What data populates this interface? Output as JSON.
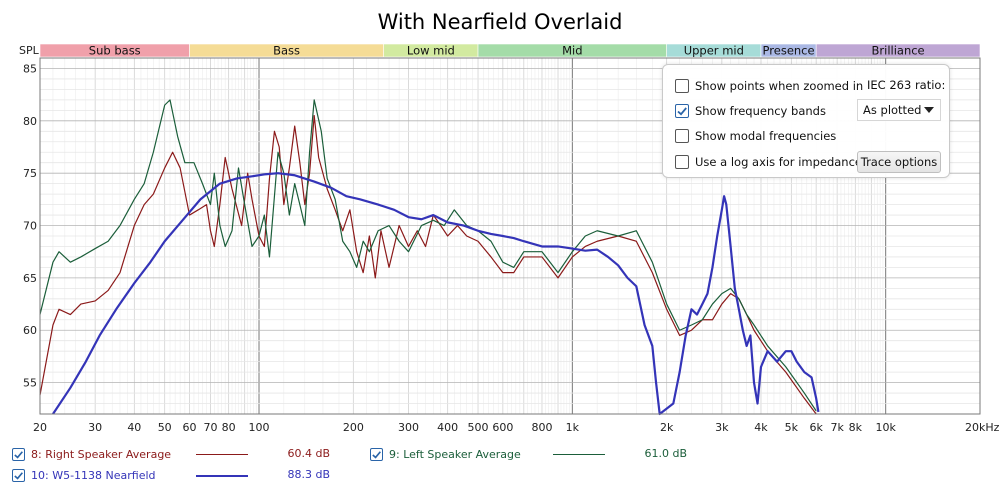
{
  "chart_data": {
    "type": "line",
    "title": "With Nearfield Overlaid",
    "ylabel": "SPL",
    "xunit_label": "20kHz",
    "xscale": "log",
    "xlim": [
      20,
      20000
    ],
    "ylim": [
      52,
      86
    ],
    "grid": true,
    "x_ticks": [
      {
        "v": 20,
        "label": "20"
      },
      {
        "v": 30,
        "label": "30"
      },
      {
        "v": 40,
        "label": "40"
      },
      {
        "v": 50,
        "label": "50"
      },
      {
        "v": 60,
        "label": "60"
      },
      {
        "v": 70,
        "label": "70"
      },
      {
        "v": 80,
        "label": "80"
      },
      {
        "v": 100,
        "label": "100"
      },
      {
        "v": 200,
        "label": "200"
      },
      {
        "v": 300,
        "label": "300"
      },
      {
        "v": 400,
        "label": "400"
      },
      {
        "v": 500,
        "label": "500"
      },
      {
        "v": 600,
        "label": "600"
      },
      {
        "v": 800,
        "label": "800"
      },
      {
        "v": 1000,
        "label": "1k"
      },
      {
        "v": 2000,
        "label": "2k"
      },
      {
        "v": 3000,
        "label": "3k"
      },
      {
        "v": 4000,
        "label": "4k"
      },
      {
        "v": 5000,
        "label": "5k"
      },
      {
        "v": 6000,
        "label": "6k"
      },
      {
        "v": 7000,
        "label": "7k"
      },
      {
        "v": 8000,
        "label": "8k"
      },
      {
        "v": 10000,
        "label": "10k"
      }
    ],
    "y_ticks": [
      55,
      60,
      65,
      70,
      75,
      80,
      85
    ],
    "bands": [
      {
        "name": "Sub bass",
        "from": 20,
        "to": 60,
        "color": "#f0a0aa"
      },
      {
        "name": "Bass",
        "from": 60,
        "to": 250,
        "color": "#f5dc96"
      },
      {
        "name": "Low mid",
        "from": 250,
        "to": 500,
        "color": "#d2eaa0"
      },
      {
        "name": "Mid",
        "from": 500,
        "to": 2000,
        "color": "#a4dca8"
      },
      {
        "name": "Upper mid",
        "from": 2000,
        "to": 4000,
        "color": "#a6dcd8"
      },
      {
        "name": "Presence",
        "from": 4000,
        "to": 6000,
        "color": "#aab8e4"
      },
      {
        "name": "Brilliance",
        "from": 6000,
        "to": 20000,
        "color": "#bea6d4"
      }
    ],
    "series": [
      {
        "id": "s8",
        "name": "8: Right Speaker Average",
        "value": "60.4 dB",
        "color": "#8b1a1a",
        "points": [
          [
            20,
            53.8
          ],
          [
            22,
            60.5
          ],
          [
            23,
            62.0
          ],
          [
            25,
            61.5
          ],
          [
            27,
            62.5
          ],
          [
            30,
            62.8
          ],
          [
            33,
            63.8
          ],
          [
            36,
            65.5
          ],
          [
            40,
            70.0
          ],
          [
            43,
            72.0
          ],
          [
            46,
            73.0
          ],
          [
            50,
            75.5
          ],
          [
            53,
            77.0
          ],
          [
            56,
            75.5
          ],
          [
            60,
            71.0
          ],
          [
            64,
            71.5
          ],
          [
            68,
            72.0
          ],
          [
            70,
            69.5
          ],
          [
            72,
            68.0
          ],
          [
            75,
            72.0
          ],
          [
            78,
            76.5
          ],
          [
            82,
            73.5
          ],
          [
            88,
            70.0
          ],
          [
            92,
            75.0
          ],
          [
            95,
            72.5
          ],
          [
            100,
            69.0
          ],
          [
            104,
            68.0
          ],
          [
            108,
            74.5
          ],
          [
            112,
            79.0
          ],
          [
            116,
            77.5
          ],
          [
            120,
            72.0
          ],
          [
            125,
            75.5
          ],
          [
            130,
            79.5
          ],
          [
            135,
            76.0
          ],
          [
            140,
            72.0
          ],
          [
            145,
            75.0
          ],
          [
            150,
            80.5
          ],
          [
            155,
            76.5
          ],
          [
            165,
            73.5
          ],
          [
            175,
            71.5
          ],
          [
            185,
            69.5
          ],
          [
            195,
            71.5
          ],
          [
            205,
            67.5
          ],
          [
            215,
            65.5
          ],
          [
            225,
            69.0
          ],
          [
            235,
            65.0
          ],
          [
            245,
            69.5
          ],
          [
            260,
            66.0
          ],
          [
            280,
            70.0
          ],
          [
            300,
            68.0
          ],
          [
            320,
            69.5
          ],
          [
            340,
            68.0
          ],
          [
            360,
            71.0
          ],
          [
            380,
            70.0
          ],
          [
            400,
            69.0
          ],
          [
            430,
            70.0
          ],
          [
            460,
            69.0
          ],
          [
            500,
            68.5
          ],
          [
            550,
            67.0
          ],
          [
            600,
            65.5
          ],
          [
            650,
            65.5
          ],
          [
            700,
            67.0
          ],
          [
            800,
            67.0
          ],
          [
            900,
            65.0
          ],
          [
            1000,
            67.0
          ],
          [
            1100,
            68.0
          ],
          [
            1200,
            68.5
          ],
          [
            1400,
            69.0
          ],
          [
            1600,
            68.5
          ],
          [
            1800,
            65.5
          ],
          [
            2000,
            62.0
          ],
          [
            2200,
            59.5
          ],
          [
            2400,
            60.0
          ],
          [
            2600,
            61.0
          ],
          [
            2800,
            61.0
          ],
          [
            3000,
            62.5
          ],
          [
            3200,
            63.5
          ],
          [
            3400,
            63.0
          ],
          [
            3600,
            61.5
          ],
          [
            3800,
            60.0
          ],
          [
            4200,
            58.0
          ],
          [
            4800,
            56.0
          ],
          [
            5500,
            53.5
          ],
          [
            6000,
            52.0
          ]
        ]
      },
      {
        "id": "s9",
        "name": "9: Left Speaker Average",
        "value": "61.0 dB",
        "color": "#1b5e3a",
        "points": [
          [
            20,
            61.5
          ],
          [
            22,
            66.5
          ],
          [
            23,
            67.5
          ],
          [
            25,
            66.5
          ],
          [
            27,
            67.0
          ],
          [
            30,
            67.8
          ],
          [
            33,
            68.5
          ],
          [
            36,
            70.0
          ],
          [
            40,
            72.5
          ],
          [
            43,
            74.0
          ],
          [
            46,
            77.0
          ],
          [
            50,
            81.5
          ],
          [
            52,
            82.0
          ],
          [
            55,
            78.5
          ],
          [
            58,
            76.0
          ],
          [
            62,
            76.0
          ],
          [
            66,
            74.0
          ],
          [
            70,
            72.0
          ],
          [
            72,
            75.0
          ],
          [
            75,
            70.0
          ],
          [
            78,
            68.0
          ],
          [
            82,
            69.5
          ],
          [
            86,
            75.5
          ],
          [
            90,
            72.0
          ],
          [
            95,
            68.0
          ],
          [
            100,
            69.0
          ],
          [
            104,
            71.0
          ],
          [
            108,
            67.0
          ],
          [
            115,
            77.0
          ],
          [
            120,
            75.0
          ],
          [
            125,
            71.0
          ],
          [
            130,
            74.0
          ],
          [
            135,
            72.0
          ],
          [
            140,
            70.0
          ],
          [
            145,
            77.0
          ],
          [
            150,
            82.0
          ],
          [
            158,
            79.0
          ],
          [
            165,
            74.5
          ],
          [
            175,
            72.5
          ],
          [
            185,
            68.5
          ],
          [
            195,
            67.5
          ],
          [
            205,
            66.0
          ],
          [
            215,
            68.5
          ],
          [
            225,
            67.5
          ],
          [
            240,
            69.5
          ],
          [
            260,
            70.0
          ],
          [
            280,
            68.5
          ],
          [
            300,
            67.5
          ],
          [
            330,
            70.0
          ],
          [
            360,
            70.5
          ],
          [
            390,
            70.0
          ],
          [
            420,
            71.5
          ],
          [
            460,
            70.0
          ],
          [
            500,
            69.5
          ],
          [
            550,
            68.5
          ],
          [
            600,
            66.5
          ],
          [
            650,
            66.0
          ],
          [
            700,
            67.5
          ],
          [
            800,
            67.5
          ],
          [
            900,
            65.5
          ],
          [
            1000,
            67.5
          ],
          [
            1100,
            69.0
          ],
          [
            1200,
            69.5
          ],
          [
            1400,
            69.0
          ],
          [
            1600,
            69.5
          ],
          [
            1800,
            66.5
          ],
          [
            2000,
            62.5
          ],
          [
            2200,
            60.0
          ],
          [
            2400,
            60.5
          ],
          [
            2600,
            61.0
          ],
          [
            2800,
            62.5
          ],
          [
            3000,
            63.5
          ],
          [
            3200,
            64.0
          ],
          [
            3400,
            63.0
          ],
          [
            3600,
            61.5
          ],
          [
            3800,
            60.5
          ],
          [
            4200,
            58.5
          ],
          [
            4800,
            56.5
          ],
          [
            5500,
            54.0
          ],
          [
            6000,
            52.3
          ]
        ]
      },
      {
        "id": "s10",
        "name": "10: W5-1138 Nearfield",
        "value": "88.3 dB",
        "color": "#3434b8",
        "points": [
          [
            22,
            52.0
          ],
          [
            25,
            54.5
          ],
          [
            28,
            57.0
          ],
          [
            31,
            59.5
          ],
          [
            35,
            62.0
          ],
          [
            40,
            64.5
          ],
          [
            45,
            66.5
          ],
          [
            50,
            68.5
          ],
          [
            57,
            70.5
          ],
          [
            65,
            72.5
          ],
          [
            75,
            74.0
          ],
          [
            85,
            74.5
          ],
          [
            95,
            74.7
          ],
          [
            105,
            74.9
          ],
          [
            115,
            75.0
          ],
          [
            130,
            74.8
          ],
          [
            150,
            74.2
          ],
          [
            170,
            73.6
          ],
          [
            190,
            72.8
          ],
          [
            210,
            72.5
          ],
          [
            240,
            72.0
          ],
          [
            270,
            71.5
          ],
          [
            300,
            70.8
          ],
          [
            330,
            70.6
          ],
          [
            360,
            71.0
          ],
          [
            400,
            70.3
          ],
          [
            450,
            70.0
          ],
          [
            500,
            69.5
          ],
          [
            550,
            69.2
          ],
          [
            600,
            69.0
          ],
          [
            650,
            68.8
          ],
          [
            700,
            68.5
          ],
          [
            800,
            68.0
          ],
          [
            900,
            68.0
          ],
          [
            1000,
            67.8
          ],
          [
            1100,
            67.6
          ],
          [
            1200,
            67.7
          ],
          [
            1300,
            67.0
          ],
          [
            1400,
            66.2
          ],
          [
            1500,
            65.0
          ],
          [
            1600,
            64.2
          ],
          [
            1700,
            60.5
          ],
          [
            1800,
            58.5
          ],
          [
            1850,
            55.0
          ],
          [
            1900,
            52.0
          ],
          [
            2100,
            53.0
          ],
          [
            2200,
            56.0
          ],
          [
            2300,
            59.5
          ],
          [
            2400,
            62.0
          ],
          [
            2500,
            61.5
          ],
          [
            2600,
            62.5
          ],
          [
            2700,
            63.5
          ],
          [
            2800,
            66.0
          ],
          [
            2900,
            69.0
          ],
          [
            3000,
            71.5
          ],
          [
            3050,
            72.8
          ],
          [
            3100,
            72.0
          ],
          [
            3200,
            68.0
          ],
          [
            3300,
            64.0
          ],
          [
            3400,
            62.0
          ],
          [
            3500,
            60.0
          ],
          [
            3600,
            58.5
          ],
          [
            3700,
            59.5
          ],
          [
            3800,
            55.0
          ],
          [
            3900,
            53.0
          ],
          [
            4000,
            56.5
          ],
          [
            4200,
            58.0
          ],
          [
            4500,
            57.0
          ],
          [
            4800,
            58.0
          ],
          [
            5000,
            58.0
          ],
          [
            5200,
            57.0
          ],
          [
            5500,
            56.0
          ],
          [
            5800,
            55.5
          ],
          [
            6000,
            53.5
          ],
          [
            6100,
            52.2
          ]
        ]
      }
    ]
  },
  "options": {
    "show_points": {
      "label": "Show points when zoomed in",
      "checked": false
    },
    "show_bands": {
      "label": "Show frequency bands",
      "checked": true
    },
    "show_modal": {
      "label": "Show modal frequencies",
      "checked": false
    },
    "log_axis": {
      "label": "Use a log axis for impedance",
      "checked": false
    },
    "iec_label": "IEC 263 ratio:",
    "iec_value": "As plotted",
    "trace_button": "Trace options"
  },
  "legend_checked": [
    true,
    true,
    true
  ]
}
